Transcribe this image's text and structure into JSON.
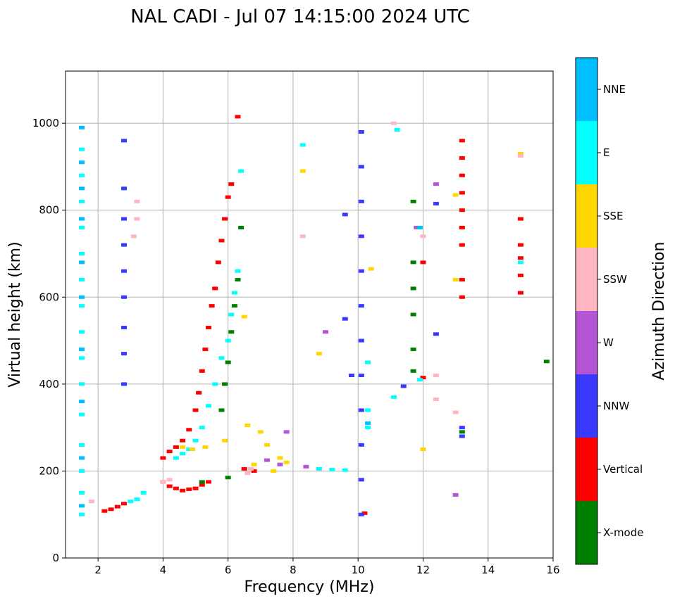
{
  "chart_data": {
    "type": "scatter",
    "title": "NAL CADI - Jul 07 14:15:00 2024 UTC",
    "xlabel": "Frequency (MHz)",
    "ylabel": "Virtual height (km)",
    "xlim": [
      1,
      16
    ],
    "ylim": [
      0,
      1120
    ],
    "xticks": [
      2,
      4,
      6,
      8,
      10,
      12,
      14,
      16
    ],
    "yticks": [
      0,
      200,
      400,
      600,
      800,
      1000
    ],
    "grid": true,
    "colorbar": {
      "title": "Azimuth Direction",
      "categories": [
        {
          "name": "X-mode",
          "color": "#008000"
        },
        {
          "name": "Vertical",
          "color": "#ff0000"
        },
        {
          "name": "NNW",
          "color": "#3a3aff"
        },
        {
          "name": "W",
          "color": "#b455d6"
        },
        {
          "name": "SSW",
          "color": "#ffb6c1"
        },
        {
          "name": "SSE",
          "color": "#ffd700"
        },
        {
          "name": "E",
          "color": "#00ffff"
        },
        {
          "name": "NNE",
          "color": "#00bfff"
        }
      ]
    },
    "series": [
      {
        "name": "Vertical",
        "color": "#ff0000",
        "points": [
          [
            2.2,
            108
          ],
          [
            2.4,
            112
          ],
          [
            2.6,
            118
          ],
          [
            2.8,
            125
          ],
          [
            4.0,
            175
          ],
          [
            4.2,
            165
          ],
          [
            4.4,
            160
          ],
          [
            4.6,
            155
          ],
          [
            4.8,
            158
          ],
          [
            5.0,
            160
          ],
          [
            5.2,
            168
          ],
          [
            5.4,
            175
          ],
          [
            4.0,
            230
          ],
          [
            4.2,
            245
          ],
          [
            4.4,
            255
          ],
          [
            4.6,
            270
          ],
          [
            4.8,
            295
          ],
          [
            5.0,
            340
          ],
          [
            5.1,
            380
          ],
          [
            5.2,
            430
          ],
          [
            5.3,
            480
          ],
          [
            5.4,
            530
          ],
          [
            5.5,
            580
          ],
          [
            5.6,
            620
          ],
          [
            5.7,
            680
          ],
          [
            5.8,
            730
          ],
          [
            5.9,
            780
          ],
          [
            6.0,
            830
          ],
          [
            6.1,
            860
          ],
          [
            6.5,
            205
          ],
          [
            6.8,
            200
          ],
          [
            10.2,
            103
          ],
          [
            12.0,
            415
          ],
          [
            12.0,
            680
          ],
          [
            13.2,
            600
          ],
          [
            13.2,
            640
          ],
          [
            13.2,
            720
          ],
          [
            13.2,
            760
          ],
          [
            13.2,
            800
          ],
          [
            13.2,
            840
          ],
          [
            13.2,
            880
          ],
          [
            13.2,
            920
          ],
          [
            13.2,
            960
          ],
          [
            15.0,
            610
          ],
          [
            15.0,
            650
          ],
          [
            15.0,
            690
          ],
          [
            15.0,
            720
          ],
          [
            15.0,
            780
          ],
          [
            6.3,
            1015
          ]
        ]
      },
      {
        "name": "E",
        "color": "#00ffff",
        "points": [
          [
            1.5,
            100
          ],
          [
            1.5,
            150
          ],
          [
            1.5,
            200
          ],
          [
            1.5,
            260
          ],
          [
            1.5,
            330
          ],
          [
            1.5,
            400
          ],
          [
            1.5,
            460
          ],
          [
            1.5,
            520
          ],
          [
            1.5,
            580
          ],
          [
            1.5,
            640
          ],
          [
            1.5,
            700
          ],
          [
            1.5,
            760
          ],
          [
            1.5,
            820
          ],
          [
            1.5,
            880
          ],
          [
            1.5,
            940
          ],
          [
            3.0,
            130
          ],
          [
            3.2,
            135
          ],
          [
            3.4,
            150
          ],
          [
            4.4,
            230
          ],
          [
            4.6,
            240
          ],
          [
            4.8,
            250
          ],
          [
            5.0,
            270
          ],
          [
            5.2,
            300
          ],
          [
            5.4,
            350
          ],
          [
            5.6,
            400
          ],
          [
            5.8,
            460
          ],
          [
            6.0,
            500
          ],
          [
            6.1,
            560
          ],
          [
            6.2,
            610
          ],
          [
            6.3,
            660
          ],
          [
            8.8,
            205
          ],
          [
            9.2,
            203
          ],
          [
            9.6,
            202
          ],
          [
            10.3,
            300
          ],
          [
            10.3,
            340
          ],
          [
            10.3,
            450
          ],
          [
            11.1,
            370
          ],
          [
            11.2,
            985
          ],
          [
            11.9,
            410
          ],
          [
            15.0,
            680
          ],
          [
            8.3,
            950
          ],
          [
            6.4,
            890
          ]
        ]
      },
      {
        "name": "SSE",
        "color": "#ffd700",
        "points": [
          [
            4.6,
            255
          ],
          [
            4.9,
            250
          ],
          [
            5.3,
            255
          ],
          [
            5.9,
            270
          ],
          [
            6.6,
            305
          ],
          [
            7.0,
            290
          ],
          [
            7.2,
            260
          ],
          [
            7.6,
            230
          ],
          [
            7.8,
            220
          ],
          [
            6.8,
            215
          ],
          [
            7.4,
            200
          ],
          [
            8.8,
            470
          ],
          [
            12.0,
            250
          ],
          [
            13.0,
            640
          ],
          [
            13.0,
            835
          ],
          [
            15.0,
            930
          ],
          [
            8.3,
            890
          ],
          [
            10.4,
            665
          ],
          [
            6.5,
            555
          ]
        ]
      },
      {
        "name": "SSW",
        "color": "#ffb6c1",
        "points": [
          [
            1.8,
            130
          ],
          [
            3.1,
            740
          ],
          [
            3.2,
            780
          ],
          [
            3.2,
            820
          ],
          [
            4.0,
            175
          ],
          [
            4.2,
            180
          ],
          [
            6.6,
            195
          ],
          [
            6.7,
            205
          ],
          [
            11.1,
            1000
          ],
          [
            12.4,
            365
          ],
          [
            12.4,
            420
          ],
          [
            13.0,
            335
          ],
          [
            15.0,
            925
          ],
          [
            8.3,
            740
          ],
          [
            12.0,
            740
          ]
        ]
      },
      {
        "name": "W",
        "color": "#b455d6",
        "points": [
          [
            7.2,
            225
          ],
          [
            7.6,
            215
          ],
          [
            8.4,
            210
          ],
          [
            9.0,
            520
          ],
          [
            12.4,
            860
          ],
          [
            13.0,
            145
          ],
          [
            11.8,
            760
          ],
          [
            7.8,
            290
          ]
        ]
      },
      {
        "name": "NNW",
        "color": "#3a3aff",
        "points": [
          [
            2.8,
            400
          ],
          [
            2.8,
            470
          ],
          [
            2.8,
            530
          ],
          [
            2.8,
            600
          ],
          [
            2.8,
            660
          ],
          [
            2.8,
            720
          ],
          [
            2.8,
            780
          ],
          [
            2.8,
            850
          ],
          [
            2.8,
            960
          ],
          [
            10.1,
            100
          ],
          [
            10.1,
            180
          ],
          [
            10.1,
            260
          ],
          [
            10.1,
            340
          ],
          [
            10.1,
            420
          ],
          [
            10.1,
            500
          ],
          [
            10.1,
            580
          ],
          [
            10.1,
            660
          ],
          [
            10.1,
            740
          ],
          [
            10.1,
            820
          ],
          [
            10.1,
            900
          ],
          [
            10.1,
            980
          ],
          [
            13.2,
            280
          ],
          [
            13.2,
            300
          ],
          [
            11.4,
            395
          ],
          [
            12.4,
            515
          ],
          [
            12.4,
            815
          ],
          [
            9.6,
            550
          ],
          [
            9.6,
            790
          ],
          [
            9.8,
            420
          ]
        ]
      },
      {
        "name": "X-mode",
        "color": "#008000",
        "points": [
          [
            5.2,
            175
          ],
          [
            6.0,
            185
          ],
          [
            5.8,
            340
          ],
          [
            5.9,
            400
          ],
          [
            6.0,
            450
          ],
          [
            6.1,
            520
          ],
          [
            6.2,
            580
          ],
          [
            6.3,
            640
          ],
          [
            6.4,
            760
          ],
          [
            11.7,
            430
          ],
          [
            11.7,
            480
          ],
          [
            11.7,
            560
          ],
          [
            11.7,
            620
          ],
          [
            11.7,
            680
          ],
          [
            11.7,
            820
          ],
          [
            13.2,
            290
          ],
          [
            15.8,
            452
          ]
        ]
      },
      {
        "name": "NNE",
        "color": "#00bfff",
        "points": [
          [
            1.5,
            990
          ],
          [
            1.5,
            910
          ],
          [
            1.5,
            850
          ],
          [
            1.5,
            780
          ],
          [
            1.5,
            680
          ],
          [
            1.5,
            600
          ],
          [
            1.5,
            480
          ],
          [
            1.5,
            360
          ],
          [
            1.5,
            230
          ],
          [
            1.5,
            120
          ],
          [
            11.9,
            760
          ],
          [
            10.3,
            310
          ]
        ]
      }
    ]
  }
}
